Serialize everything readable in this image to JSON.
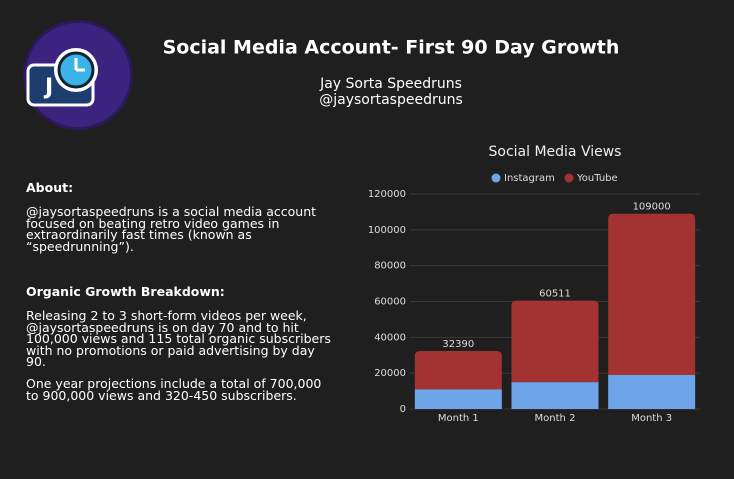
{
  "header": {
    "title": "Social Media Account- First 90 Day Growth",
    "name": "Jay Sorta Speedruns",
    "handle": "@jaysortaspeedruns"
  },
  "about": {
    "heading": "About:",
    "text": "@jaysortaspeedruns is a social media account focused on beating retro video games in extraordinarily fast times (known as “speedrunning”)."
  },
  "growth": {
    "heading": "Organic Growth Breakdown:",
    "text": "Releasing 2 to 3 short-form videos per week, @jaysortaspeedruns is on day 70 and to hit 100,000 views and 115 total organic subscribers with no promotions or paid advertising by day 90.",
    "projection": "One year projections include a total of 700,000 to 900,000 views and 320-450 subscribers."
  },
  "chart_data": {
    "type": "stacked-bar",
    "title": "Social Media Views",
    "categories": [
      "Month 1",
      "Month 2",
      "Month 3"
    ],
    "series": [
      {
        "name": "Instagram",
        "color": "#6ea4e8",
        "values": [
          11000,
          15000,
          19000
        ]
      },
      {
        "name": "YouTube",
        "color": "#a33232",
        "values": [
          21390,
          45511,
          90000
        ]
      }
    ],
    "totals": [
      32390,
      60511,
      109000
    ],
    "ylim": [
      0,
      120000
    ],
    "yticks": [
      0,
      20000,
      40000,
      60000,
      80000,
      100000,
      120000
    ],
    "grid": true,
    "legend": "top"
  }
}
